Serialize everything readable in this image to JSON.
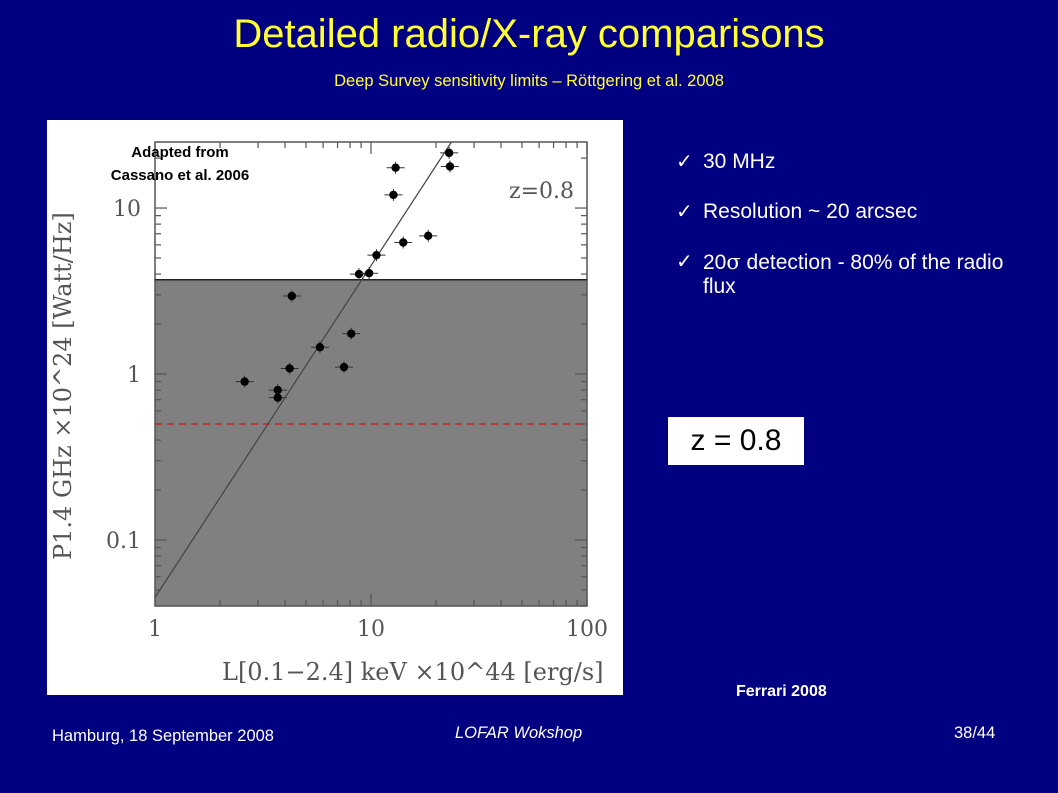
{
  "slide": {
    "title": "Detailed radio/X-ray comparisons",
    "subtitle": "Deep Survey sensitivity limits – Röttgering et al. 2008",
    "adapted_line1": "Adapted from",
    "adapted_line2": "Cassano et al. 2006",
    "bullets": [
      {
        "icon": "checkmark-icon",
        "text": "30 MHz"
      },
      {
        "icon": "checkmark-icon",
        "text": "Resolution ~ 20 arcsec"
      },
      {
        "icon": "checkmark-icon",
        "text_prefix": "20",
        "symbol": "σ",
        "text_suffix": " detection - 80% of the radio flux"
      }
    ],
    "zbox": "z = 0.8",
    "credit": "Ferrari 2008",
    "footer_left": "Hamburg, 18 September 2008",
    "footer_center": "LOFAR Wokshop",
    "footer_right": "38/44"
  },
  "colors": {
    "background": "#000080",
    "title": "#ffff33",
    "shaded_region": "#808080",
    "dashed_limit": "#cc2222",
    "points": "#000000"
  },
  "chart_data": {
    "type": "scatter",
    "xscale": "log",
    "yscale": "log",
    "xlim": [
      1,
      100
    ],
    "ylim": [
      0.04,
      25
    ],
    "xticks": [
      "1",
      "10",
      "100"
    ],
    "yticks": [
      "0.1",
      "1",
      "10"
    ],
    "xlabel": "L[0.1−2.4] keV ×10^44 [erg/s]",
    "ylabel": "P1.4 GHz ×10^24 [Watt/Hz]",
    "annotation": "z=0.8",
    "series": [
      {
        "points": [
          [
            2.6,
            0.9
          ],
          [
            3.7,
            0.8
          ],
          [
            3.7,
            0.72
          ],
          [
            4.2,
            1.08
          ],
          [
            4.3,
            2.95
          ],
          [
            5.8,
            1.45
          ],
          [
            7.5,
            1.1
          ],
          [
            8.1,
            1.75
          ],
          [
            8.8,
            4.0
          ],
          [
            9.8,
            4.05
          ],
          [
            10.6,
            5.2
          ],
          [
            12.7,
            12.0
          ],
          [
            13.0,
            17.5
          ],
          [
            14.1,
            6.2
          ],
          [
            18.4,
            6.8
          ],
          [
            23.0,
            21.5
          ],
          [
            23.2,
            17.8
          ]
        ]
      }
    ],
    "fit_line": {
      "slope": 2.0,
      "at_x1": 0.045
    },
    "solid_limit": 3.7,
    "dashed_limit": 0.5
  }
}
